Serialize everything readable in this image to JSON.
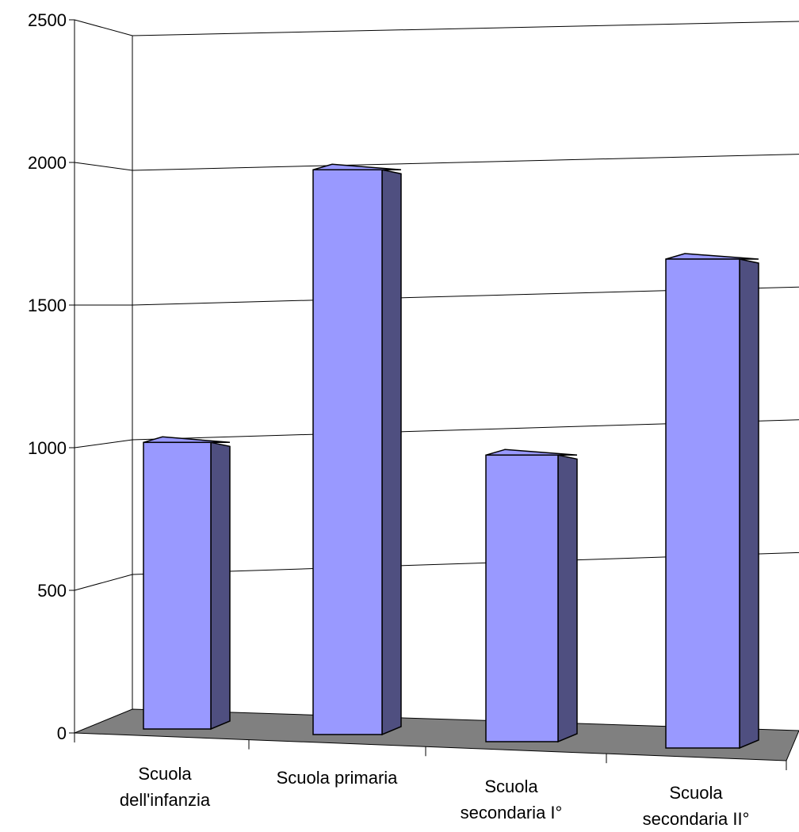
{
  "chart_data": {
    "type": "bar",
    "style": "3d-perspective",
    "categories": [
      [
        "Scuola",
        "dell'infanzia"
      ],
      [
        "Scuola primaria"
      ],
      [
        "Scuola",
        "secondaria I°"
      ],
      [
        "Scuola",
        "secondaria II°"
      ]
    ],
    "series": [
      {
        "values": [
          1020,
          2010,
          1020,
          1740
        ]
      }
    ],
    "yticks": [
      "0",
      "500",
      "1000",
      "1500",
      "2000",
      "2500"
    ],
    "ylim": [
      0,
      2500
    ],
    "grid": true,
    "title": "",
    "xlabel": "",
    "ylabel": "",
    "colors": {
      "bar_front": "#9999ff",
      "bar_side": "#4f4f80",
      "floor": "#808080",
      "gridline": "#000000"
    }
  }
}
